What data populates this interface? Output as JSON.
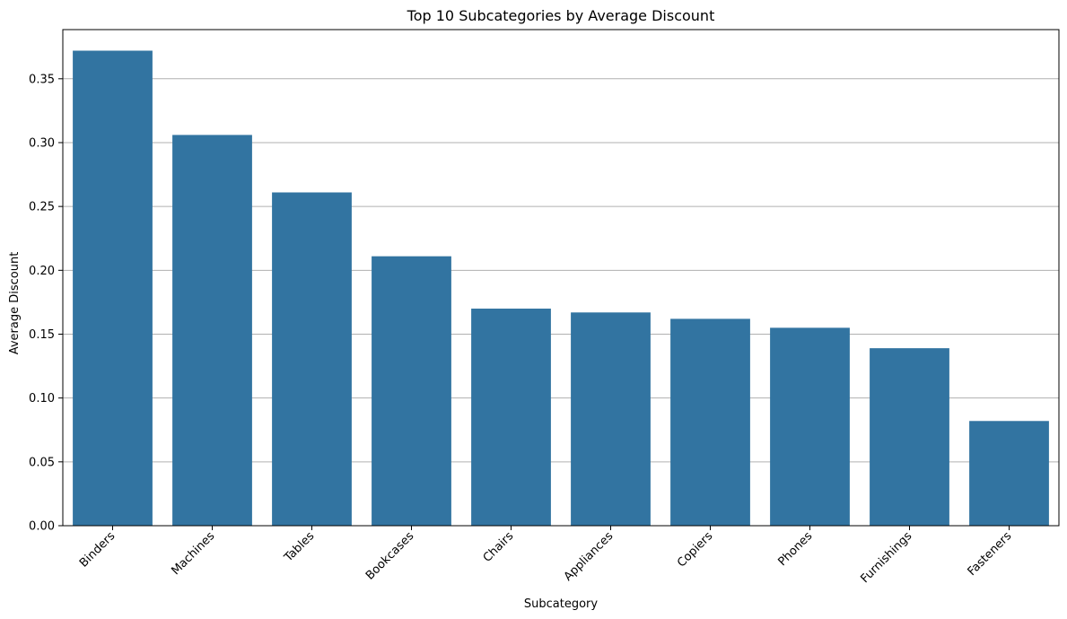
{
  "chart_data": {
    "type": "bar",
    "title": "Top 10 Subcategories by Average Discount",
    "xlabel": "Subcategory",
    "ylabel": "Average Discount",
    "categories": [
      "Binders",
      "Machines",
      "Tables",
      "Bookcases",
      "Chairs",
      "Appliances",
      "Copiers",
      "Phones",
      "Furnishings",
      "Fasteners"
    ],
    "values": [
      0.372,
      0.306,
      0.261,
      0.211,
      0.17,
      0.167,
      0.162,
      0.155,
      0.139,
      0.082
    ],
    "ylim": [
      0,
      0.3885
    ],
    "yticks": [
      "0.00",
      "0.05",
      "0.10",
      "0.15",
      "0.20",
      "0.25",
      "0.30",
      "0.35"
    ],
    "grid": "horizontal",
    "bar_color": "#3274a1",
    "grid_color": "#b0b0b0"
  }
}
